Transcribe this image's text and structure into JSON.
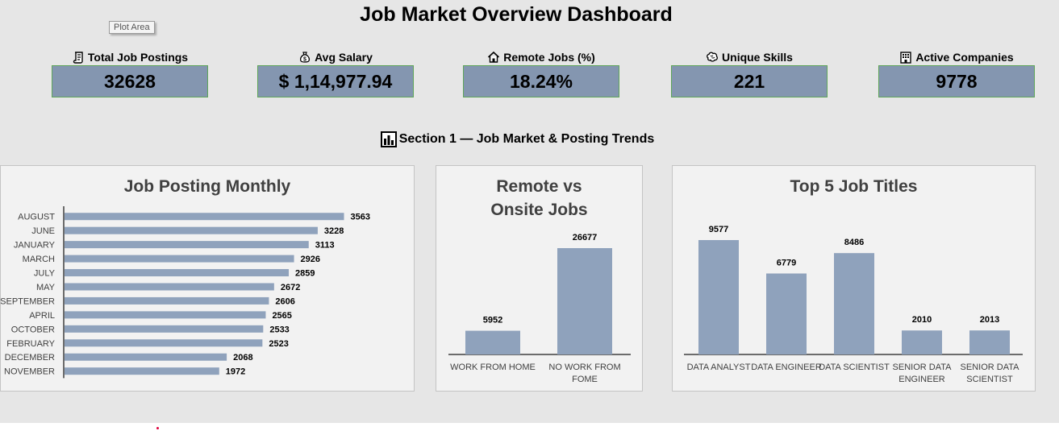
{
  "dashboard": {
    "title": "Job Market Overview Dashboard",
    "tooltip": "Plot Area",
    "section_heading": "Section 1 — Job Market & Posting Trends",
    "section_icon": "bar-chart-icon"
  },
  "kpis": [
    {
      "label": "Total Job Postings",
      "value": "32628",
      "icon": "scroll-icon"
    },
    {
      "label": "Avg Salary",
      "value": "$ 1,14,977.94",
      "icon": "money-bag-icon"
    },
    {
      "label": "Remote Jobs (%)",
      "value": "18.24%",
      "icon": "house-icon"
    },
    {
      "label": "Unique Skills",
      "value": "221",
      "icon": "brain-icon"
    },
    {
      "label": "Active Companies",
      "value": "9778",
      "icon": "office-building-icon"
    }
  ],
  "colors": {
    "bar": "#8fa2bc",
    "kpi_box": "#8496b0",
    "kpi_border": "#5fa55a",
    "background": "#e6e6e6",
    "panel": "#f2f2f2"
  },
  "chart_data": [
    {
      "type": "bar",
      "orientation": "horizontal",
      "title": "Job Posting Monthly",
      "categories": [
        "AUGUST",
        "JUNE",
        "JANUARY",
        "MARCH",
        "JULY",
        "MAY",
        "SEPTEMBER",
        "APRIL",
        "OCTOBER",
        "FEBRUARY",
        "DECEMBER",
        "NOVEMBER"
      ],
      "values": [
        3563,
        3228,
        3113,
        2926,
        2859,
        2672,
        2606,
        2565,
        2533,
        2523,
        2068,
        1972
      ],
      "xlim": [
        0,
        4000
      ],
      "grid": false,
      "data_labels": true
    },
    {
      "type": "bar",
      "orientation": "vertical",
      "title": "Remote vs Onsite Jobs",
      "categories": [
        "WORK FROM HOME",
        "NO WORK FROM FOME"
      ],
      "values": [
        5952,
        26677
      ],
      "ylim": [
        0,
        30000
      ],
      "grid": false,
      "data_labels": true
    },
    {
      "type": "bar",
      "orientation": "vertical",
      "title": "Top 5 Job Titles",
      "categories": [
        "DATA ANALYST",
        "DATA ENGINEER",
        "DATA SCIENTIST",
        "SENIOR DATA ENGINEER",
        "SENIOR DATA SCIENTIST"
      ],
      "values": [
        9577,
        6779,
        8486,
        2010,
        2013
      ],
      "ylim": [
        0,
        10000
      ],
      "grid": false,
      "data_labels": true
    }
  ]
}
